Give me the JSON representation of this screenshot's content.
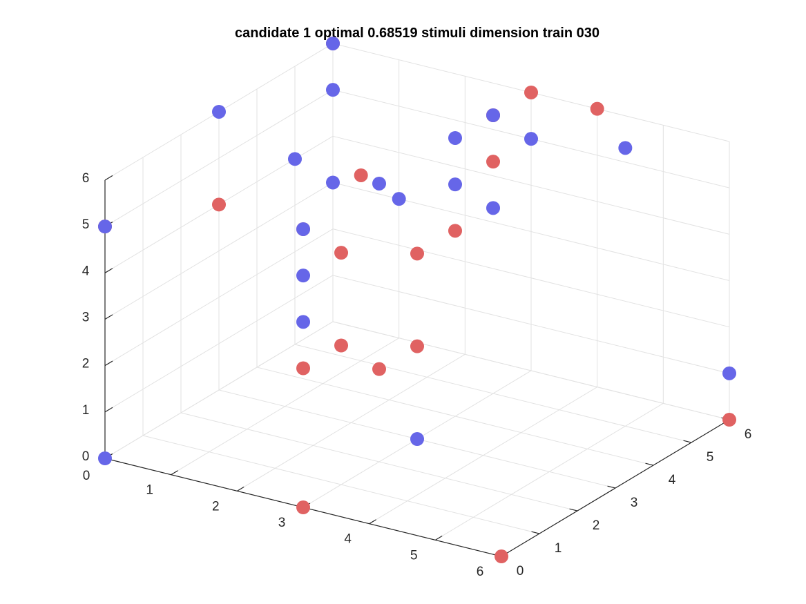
{
  "chart_data": {
    "type": "scatter",
    "title": "candidate 1 optimal 0.68519 stimuli dimension train 030",
    "xlabel": "",
    "ylabel": "",
    "zlabel": "",
    "xlim": [
      0,
      6
    ],
    "ylim": [
      0,
      6
    ],
    "zlim": [
      0,
      6
    ],
    "xticks": [
      "0",
      "1",
      "2",
      "3",
      "4",
      "5",
      "6"
    ],
    "yticks": [
      "0",
      "1",
      "2",
      "3",
      "4",
      "5",
      "6"
    ],
    "zticks": [
      "0",
      "1",
      "2",
      "3",
      "4",
      "5",
      "6"
    ],
    "grid": true,
    "series": [
      {
        "color": "#e06262",
        "points": [
          [
            0,
            6,
            6
          ],
          [
            0,
            3,
            4
          ],
          [
            0,
            0,
            5
          ],
          [
            3,
            0,
            0
          ],
          [
            3,
            0,
            3
          ],
          [
            3,
            0,
            6
          ],
          [
            6,
            0,
            0
          ],
          [
            1,
            5,
            4
          ],
          [
            3,
            4,
            4
          ],
          [
            3,
            3,
            2
          ],
          [
            3,
            3,
            4
          ],
          [
            3,
            5,
            6
          ],
          [
            6,
            6,
            0
          ],
          [
            3,
            5,
            6
          ],
          [
            3,
            5,
            5
          ],
          [
            3,
            6,
            6
          ],
          [
            3,
            1,
            5
          ],
          [
            3,
            1,
            3
          ],
          [
            3,
            2,
            2
          ],
          [
            4,
            6,
            6
          ]
        ]
      },
      {
        "color": "#6666e8",
        "points": [
          [
            0,
            0,
            0
          ],
          [
            0,
            6,
            3
          ],
          [
            0,
            3,
            6
          ],
          [
            0,
            6,
            6
          ],
          [
            0,
            0,
            5
          ],
          [
            0,
            6,
            5
          ],
          [
            3,
            3,
            0
          ],
          [
            0,
            5,
            4
          ],
          [
            3,
            0,
            4
          ],
          [
            3,
            0,
            5
          ],
          [
            3,
            0,
            6
          ],
          [
            3,
            4,
            6
          ],
          [
            3,
            4,
            5
          ],
          [
            3,
            5,
            4
          ],
          [
            3,
            6,
            5
          ],
          [
            6,
            6,
            1
          ],
          [
            1,
            6,
            3
          ],
          [
            3,
            5,
            6
          ],
          [
            3,
            2,
            6
          ],
          [
            5,
            5,
            6
          ]
        ]
      }
    ]
  }
}
